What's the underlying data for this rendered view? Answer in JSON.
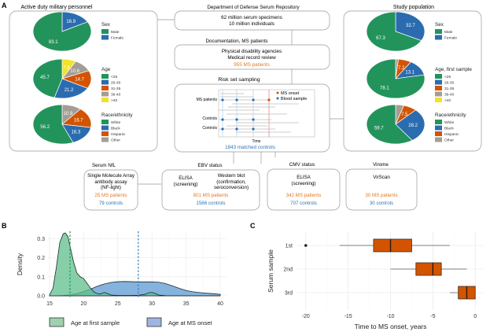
{
  "panels": {
    "a": {
      "label": "A",
      "left_title": "Active duty military personnel",
      "right_title": "Study population",
      "colors": {
        "green": "#23935c",
        "blue": "#2b6cb0",
        "orange": "#d35400",
        "grey": "#a39d95",
        "yellow": "#f2e329",
        "patients_text": "#e07b22",
        "controls_text": "#2f73b6"
      },
      "left_pies": [
        {
          "legend_title": "Sex",
          "slices": [
            {
              "label": "Male",
              "value": 83.1,
              "color": "#23935c",
              "show": "83.1"
            },
            {
              "label": "Female",
              "value": 16.9,
              "color": "#2b6cb0",
              "show": "16.9"
            }
          ]
        },
        {
          "legend_title": "Age",
          "slices": [
            {
              "label": "<26",
              "value": 45.7,
              "color": "#23935c",
              "show": "45.7"
            },
            {
              "label": "26-30",
              "value": 21.2,
              "color": "#2b6cb0",
              "show": "21.2"
            },
            {
              "label": "31-35",
              "value": 14.7,
              "color": "#d35400",
              "show": "14.7"
            },
            {
              "label": "36-40",
              "value": 10.6,
              "color": "#a39d95",
              "show": "10.6"
            },
            {
              "label": ">40",
              "value": 7.8,
              "color": "#f2e329",
              "show": "7.8"
            }
          ]
        },
        {
          "legend_title": "Race/ethnicity",
          "slices": [
            {
              "label": "White",
              "value": 56.2,
              "color": "#23935c",
              "show": "56.2"
            },
            {
              "label": "Black",
              "value": 16.3,
              "color": "#2b6cb0",
              "show": "16.3"
            },
            {
              "label": "Hispanic",
              "value": 16.7,
              "color": "#d35400",
              "show": "16.7"
            },
            {
              "label": "Other",
              "value": 10.9,
              "color": "#a39d95",
              "show": "10.9"
            }
          ]
        }
      ],
      "right_pies": [
        {
          "legend_title": "Sex",
          "slices": [
            {
              "label": "Male",
              "value": 67.3,
              "color": "#23935c",
              "show": "67.3"
            },
            {
              "label": "Female",
              "value": 32.7,
              "color": "#2b6cb0",
              "show": "32.7"
            }
          ]
        },
        {
          "legend_title": "Age, first sample",
          "slices": [
            {
              "label": "<26",
              "value": 78.1,
              "color": "#23935c",
              "show": "78.1"
            },
            {
              "label": "26-30",
              "value": 13.1,
              "color": "#2b6cb0",
              "show": "13.1"
            },
            {
              "label": "31-35",
              "value": 7.2,
              "color": "#d35400",
              "show": "7.2"
            },
            {
              "label": "36-40",
              "value": 1.6,
              "color": "#a39d95",
              "show": ""
            },
            {
              "label": ">40",
              "value": 0.0,
              "color": "#f2e329",
              "show": ""
            }
          ]
        },
        {
          "legend_title": "Race/ethnicity",
          "slices": [
            {
              "label": "White",
              "value": 59.7,
              "color": "#23935c",
              "show": "59.7"
            },
            {
              "label": "Black",
              "value": 28.2,
              "color": "#2b6cb0",
              "show": "28.2"
            },
            {
              "label": "Hispanic",
              "value": 7.5,
              "color": "#d35400",
              "show": "7.5"
            },
            {
              "label": "Other",
              "value": 4.6,
              "color": "#a39d95",
              "show": ""
            }
          ]
        }
      ],
      "repository": {
        "title": "Department of Defense Serum Repository",
        "line1": "62 million serum specimens",
        "line2": "10 million individuals"
      },
      "documentation": {
        "title": "Documentation, MS patients",
        "line1": "Physical disability agencies",
        "line2": "Medical record review",
        "patients": "955 MS patients"
      },
      "risk_set": {
        "title": "Risk set sampling",
        "row_labels": [
          "MS patients",
          "Controls",
          "Controls"
        ],
        "legend_onset": "MS onset",
        "legend_sample": "Blood sample",
        "axis_label": "Time",
        "controls": "1843 matched controls"
      },
      "assays": [
        {
          "title": "Serum NfL",
          "lines": [
            "Single Molecule Array",
            "antibody assay",
            "(NF-light)"
          ],
          "patients": "25 MS patients",
          "controls": "79 controls"
        },
        {
          "title": "EBV status",
          "col1": [
            "ELISA",
            "(screening)"
          ],
          "col2": [
            "Western blot",
            "(confirmation,",
            "seroconversion)"
          ],
          "patients": "801 MS patients",
          "controls": "1566 controls"
        },
        {
          "title": "CMV status",
          "lines": [
            "ELISA",
            "(screening)"
          ],
          "patients": "342 MS patients",
          "controls": "707 controls"
        },
        {
          "title": "Virome",
          "lines": [
            "VirScan"
          ],
          "patients": "30 MS patients",
          "controls": "30 controls"
        }
      ]
    }
  },
  "chart_data": [
    {
      "panel": "B",
      "type": "area",
      "title": "",
      "xlabel": "",
      "ylabel": "Density",
      "xlim": [
        15,
        40
      ],
      "ylim": [
        0,
        0.33
      ],
      "x_ticks": [
        15,
        20,
        25,
        30,
        35,
        40
      ],
      "y_ticks": [
        "0.0",
        "0.1",
        "0.2",
        "0.3"
      ],
      "y_tick_values": [
        0,
        0.1,
        0.2,
        0.3
      ],
      "grid": true,
      "legend_position": "bottom",
      "series": [
        {
          "name": "Age at first sample",
          "fill": "#5fbf8c",
          "legend_fill": "#9fd1b0",
          "median": 18,
          "x": [
            15,
            15.5,
            16,
            16.5,
            17,
            17.3,
            17.7,
            18,
            18.5,
            19,
            19.5,
            20,
            20.5,
            21,
            21.5,
            22,
            22.5,
            23,
            23.5,
            24,
            25,
            26,
            27,
            28,
            29,
            29.5,
            30,
            30.5,
            31,
            32,
            35,
            40
          ],
          "y": [
            0.005,
            0.04,
            0.15,
            0.28,
            0.325,
            0.33,
            0.31,
            0.26,
            0.18,
            0.12,
            0.1,
            0.09,
            0.065,
            0.04,
            0.02,
            0.012,
            0.01,
            0.018,
            0.012,
            0.004,
            0.002,
            0.002,
            0.002,
            0.003,
            0.008,
            0.016,
            0.018,
            0.012,
            0.004,
            0.001,
            0.0,
            0.0
          ]
        },
        {
          "name": "Age at MS onset",
          "fill": "#5b9bd3",
          "legend_fill": "#9fb4de",
          "median": 28,
          "x": [
            15,
            16,
            17,
            18,
            19,
            20,
            21,
            22,
            23,
            24,
            25,
            26,
            27,
            28,
            29,
            30,
            31,
            32,
            33,
            34,
            35,
            36,
            37,
            38,
            39,
            40
          ],
          "y": [
            0.0,
            0.0,
            0.002,
            0.005,
            0.012,
            0.022,
            0.035,
            0.05,
            0.062,
            0.07,
            0.074,
            0.075,
            0.074,
            0.073,
            0.073,
            0.073,
            0.071,
            0.064,
            0.052,
            0.039,
            0.028,
            0.021,
            0.017,
            0.014,
            0.011,
            0.008
          ]
        }
      ]
    },
    {
      "panel": "C",
      "type": "box",
      "xlabel": "Time to MS onset, years",
      "ylabel": "Serum sample",
      "xlim": [
        -21,
        1
      ],
      "x_ticks": [
        -20,
        -15,
        -10,
        -5,
        0
      ],
      "grid": true,
      "box_color": "#d35400",
      "categories": [
        "1st",
        "2nd",
        "3rd"
      ],
      "boxes": [
        {
          "name": "1st",
          "whisker_low": -16,
          "q1": -12,
          "median": -10,
          "q3": -7.5,
          "whisker_high": -3,
          "outliers": [
            -20
          ]
        },
        {
          "name": "2nd",
          "whisker_low": -10,
          "q1": -7,
          "median": -5,
          "q3": -4,
          "whisker_high": -1,
          "outliers": []
        },
        {
          "name": "3rd",
          "whisker_low": -3,
          "q1": -2,
          "median": -1,
          "q3": 0,
          "whisker_high": 0,
          "outliers": []
        }
      ]
    }
  ],
  "panel_labels": {
    "b": "B",
    "c": "C"
  }
}
